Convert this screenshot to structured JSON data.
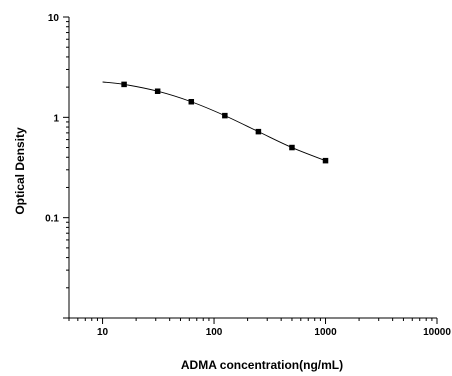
{
  "chart_data": {
    "type": "scatter",
    "title": "",
    "xlabel": "ADMA concentration(ng/mL)",
    "ylabel": "Optical Density",
    "x_scale": "log",
    "y_scale": "log",
    "xlim": [
      5,
      10000
    ],
    "ylim": [
      0.01,
      10
    ],
    "x_ticks": [
      10,
      100,
      1000,
      10000
    ],
    "x_tick_labels": [
      "10",
      "100",
      "1000",
      "10000"
    ],
    "y_ticks": [
      0.1,
      1,
      10
    ],
    "y_tick_labels": [
      "0.1",
      "1",
      "10"
    ],
    "grid": false,
    "legend": "none",
    "series": [
      {
        "type": "scatter",
        "marker": "square",
        "x": [
          15.6,
          31.2,
          62.5,
          125,
          250,
          500,
          1000
        ],
        "y": [
          2.13,
          1.82,
          1.43,
          1.04,
          0.72,
          0.5,
          0.37
        ]
      },
      {
        "type": "line",
        "x": [
          10,
          15.6,
          31.2,
          62.5,
          125,
          250,
          500,
          1000
        ],
        "y": [
          2.25,
          2.13,
          1.82,
          1.43,
          1.04,
          0.72,
          0.5,
          0.37
        ]
      }
    ]
  }
}
